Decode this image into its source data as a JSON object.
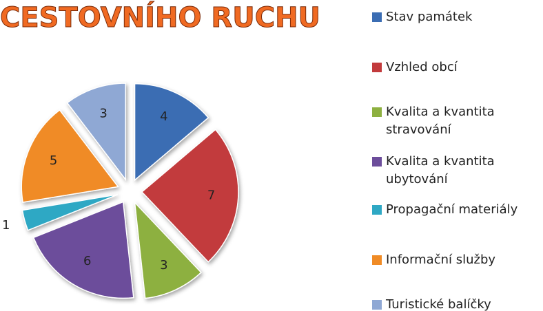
{
  "chart_data": {
    "type": "pie",
    "title": "CESTOVNÍHO RUCHU",
    "categories": [
      "Stav památek",
      "Vzhled obcí",
      "Kvalita a kvantita stravování",
      "Kvalita a kvantita ubytování",
      "Propagační materiály",
      "Informační služby",
      "Turistické balíčky"
    ],
    "values": [
      4,
      7,
      3,
      6,
      1,
      5,
      3
    ],
    "colors": [
      "#3b6db3",
      "#c23a3c",
      "#8db040",
      "#6c4d9b",
      "#2ea8c4",
      "#f08b25",
      "#8fa8d4"
    ],
    "legend": "right"
  }
}
